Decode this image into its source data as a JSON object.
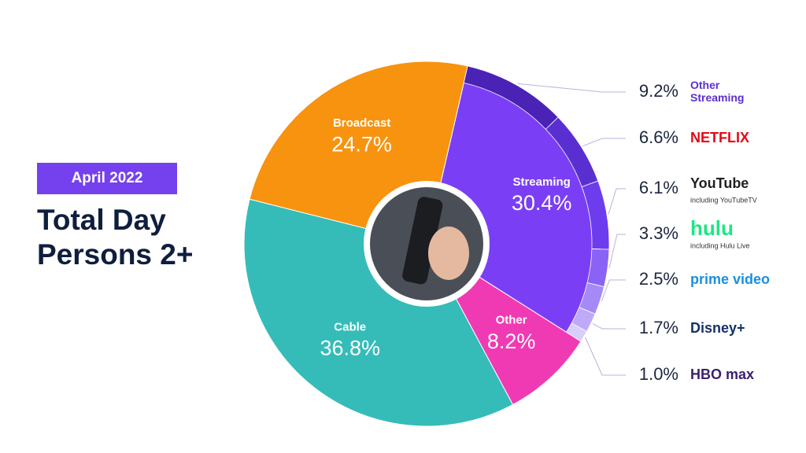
{
  "chart_data": {
    "type": "pie",
    "badge": "April 2022",
    "title": "Total Day Persons 2+",
    "categories": [
      "Streaming",
      "Other",
      "Cable",
      "Broadcast"
    ],
    "values": [
      30.4,
      8.2,
      36.8,
      24.7
    ],
    "value_labels": [
      "30.4%",
      "8.2%",
      "36.8%",
      "24.7%"
    ],
    "colors": [
      "#7a3ff5",
      "#f03ab4",
      "#35bcb9",
      "#f7930f"
    ],
    "streaming_breakdown": {
      "categories": [
        "Other Streaming",
        "NETFLIX",
        "YouTube",
        "hulu",
        "prime video",
        "Disney+",
        "HBO max"
      ],
      "notes": [
        null,
        null,
        "including YouTubeTV",
        "including Hulu Live",
        null,
        null,
        null
      ],
      "values": [
        9.2,
        6.6,
        6.1,
        3.3,
        2.5,
        1.7,
        1.0
      ],
      "value_labels": [
        "9.2%",
        "6.6%",
        "6.1%",
        "3.3%",
        "2.5%",
        "1.7%",
        "1.0%"
      ],
      "colors": [
        "#4a22b5",
        "#5a2fd2",
        "#6d3ded",
        "#8a62f5",
        "#a589f7",
        "#bfaaf9",
        "#d8cdfb"
      ],
      "label_colors": [
        "#5a2fd2",
        "#e50914",
        "#222222",
        "#1ce783",
        "#1a8fe0",
        "#16306b",
        "#3a1f70"
      ]
    }
  }
}
